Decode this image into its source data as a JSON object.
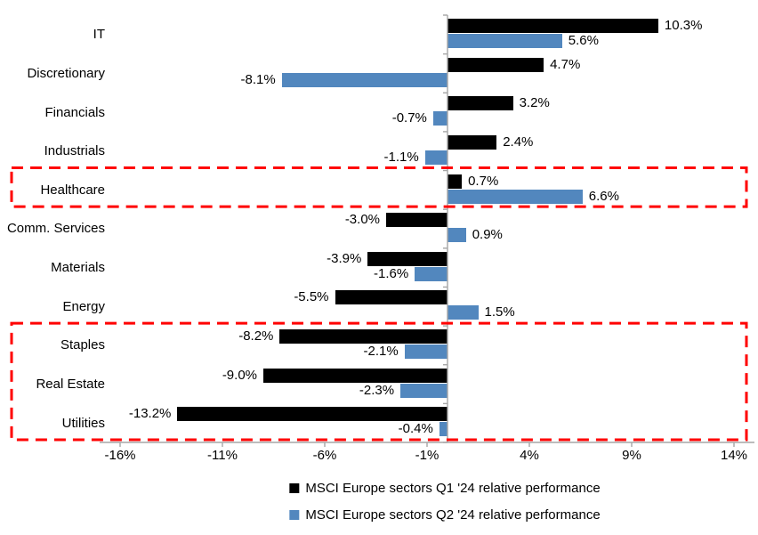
{
  "chart_data": {
    "type": "bar",
    "orientation": "horizontal",
    "title": "",
    "categories": [
      "IT",
      "Discretionary",
      "Financials",
      "Industrials",
      "Healthcare",
      "Comm. Services",
      "Materials",
      "Energy",
      "Staples",
      "Real Estate",
      "Utilities"
    ],
    "series": [
      {
        "name": "MSCI Europe sectors Q1 '24 relative performance",
        "color": "#000000",
        "values": [
          10.3,
          4.7,
          3.2,
          2.4,
          0.7,
          -3.0,
          -3.9,
          -5.5,
          -8.2,
          -9.0,
          -13.2
        ]
      },
      {
        "name": "MSCI Europe sectors Q2 '24 relative performance",
        "color": "#5287BE",
        "values": [
          5.6,
          -8.1,
          -0.7,
          -1.1,
          6.6,
          0.9,
          -1.6,
          1.5,
          -2.1,
          -2.3,
          -0.4
        ]
      }
    ],
    "data_labels": [
      "10.3%",
      "5.6%",
      "4.7%",
      "-8.1%",
      "3.2%",
      "-0.7%",
      "2.4%",
      "-1.1%",
      "0.7%",
      "6.6%",
      "-3.0%",
      "0.9%",
      "-3.9%",
      "-1.6%",
      "-5.5%",
      "1.5%",
      "-8.2%",
      "-2.1%",
      "-9.0%",
      "-2.3%",
      "-13.2%",
      "-0.4%"
    ],
    "x_ticks": [
      {
        "label": "-16%",
        "value": -16
      },
      {
        "label": "-11%",
        "value": -11
      },
      {
        "label": "-6%",
        "value": -6
      },
      {
        "label": "-1%",
        "value": -1
      },
      {
        "label": "4%",
        "value": 4
      },
      {
        "label": "9%",
        "value": 9
      },
      {
        "label": "14%",
        "value": 14
      }
    ],
    "xlim": [
      -17,
      15
    ],
    "grid": false,
    "legend_position": "bottom",
    "axis_color": "#A6A6A6",
    "highlight_color": "#FF0000",
    "highlights": [
      {
        "sectors": [
          "Healthcare"
        ]
      },
      {
        "sectors": [
          "Staples",
          "Real Estate",
          "Utilities"
        ]
      }
    ]
  }
}
